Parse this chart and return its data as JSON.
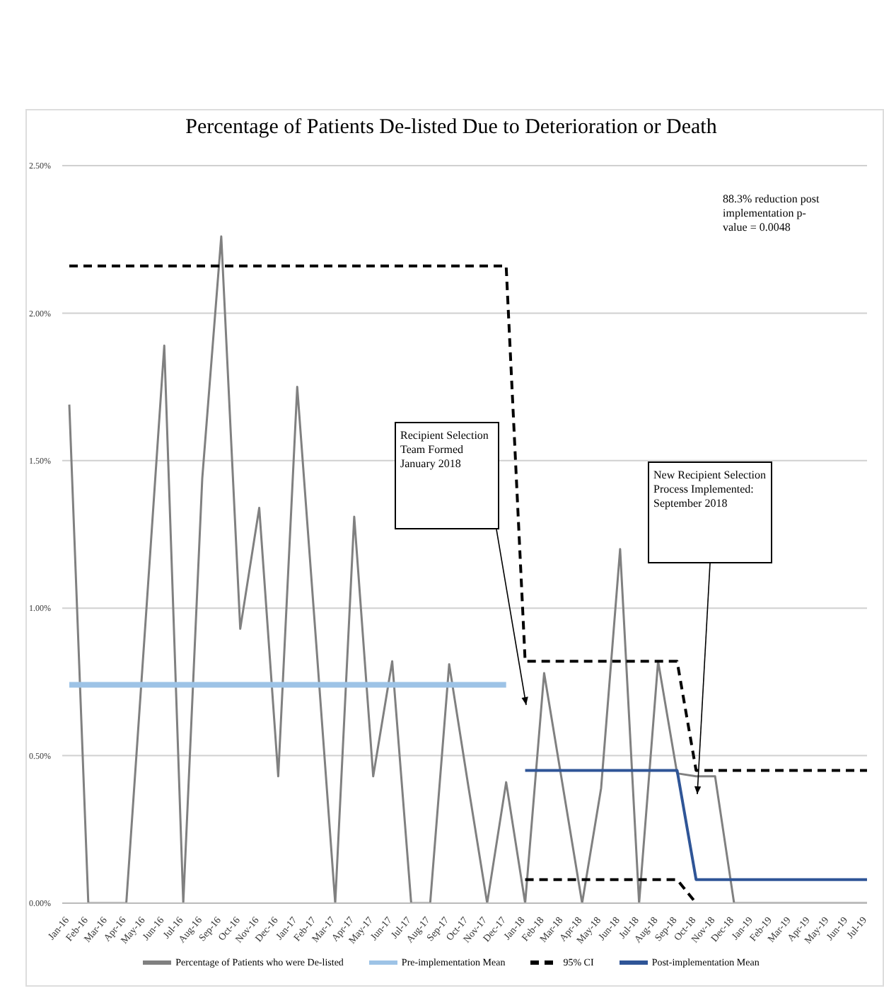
{
  "chart_data": {
    "type": "line",
    "title": "Percentage of Patients De-listed Due to Deterioration or Death",
    "categories": [
      "Jan-16",
      "Feb-16",
      "Mar-16",
      "Apr-16",
      "May-16",
      "Jun-16",
      "Jul-16",
      "Aug-16",
      "Sep-16",
      "Oct-16",
      "Nov-16",
      "Dec-16",
      "Jan-17",
      "Feb-17",
      "Mar-17",
      "Apr-17",
      "May-17",
      "Jun-17",
      "Jul-17",
      "Aug-17",
      "Sep-17",
      "Oct-17",
      "Nov-17",
      "Dec-17",
      "Jan-18",
      "Feb-18",
      "Mar-18",
      "Apr-18",
      "May-18",
      "Jun-18",
      "Jul-18",
      "Aug-18",
      "Sep-18",
      "Oct-18",
      "Nov-18",
      "Dec-18",
      "Jan-19",
      "Feb-19",
      "Mar-19",
      "Apr-19",
      "May-19",
      "Jun-19",
      "Jul-19"
    ],
    "series": [
      {
        "name": "Percentage of Patients who were De-listed",
        "color": "#808080",
        "line_style": "solid",
        "values": [
          1.69,
          0,
          0,
          0,
          0.94,
          1.89,
          0,
          1.44,
          2.26,
          0.93,
          1.34,
          0.43,
          1.75,
          0.88,
          0,
          1.31,
          0.43,
          0.82,
          0,
          0,
          0.81,
          0.4,
          0,
          0.41,
          0,
          0.78,
          0.39,
          0,
          0.39,
          1.2,
          0,
          0.82,
          0.44,
          0.43,
          0.43,
          0,
          0,
          0,
          0,
          0,
          0,
          0,
          0
        ]
      },
      {
        "name": "Pre-implementation Mean",
        "color": "#9dc3e6",
        "line_style": "solid",
        "values": [
          0.74,
          0.74,
          0.74,
          0.74,
          0.74,
          0.74,
          0.74,
          0.74,
          0.74,
          0.74,
          0.74,
          0.74,
          0.74,
          0.74,
          0.74,
          0.74,
          0.74,
          0.74,
          0.74,
          0.74,
          0.74,
          0.74,
          0.74,
          0.74,
          null,
          null,
          null,
          null,
          null,
          null,
          null,
          null,
          null,
          null,
          null,
          null,
          null,
          null,
          null,
          null,
          null,
          null,
          null
        ]
      },
      {
        "name": "95% CI",
        "color": "#000000",
        "line_style": "dashed",
        "values": [
          2.16,
          2.16,
          2.16,
          2.16,
          2.16,
          2.16,
          2.16,
          2.16,
          2.16,
          2.16,
          2.16,
          2.16,
          2.16,
          2.16,
          2.16,
          2.16,
          2.16,
          2.16,
          2.16,
          2.16,
          2.16,
          2.16,
          2.16,
          2.16,
          0.82,
          0.82,
          0.82,
          0.82,
          0.82,
          0.82,
          0.82,
          0.82,
          0.82,
          0.45,
          0.45,
          0.45,
          0.45,
          0.45,
          0.45,
          0.45,
          0.45,
          0.45,
          0.45
        ]
      },
      {
        "color": "#000000",
        "line_style": "dashed",
        "values": [
          null,
          null,
          null,
          null,
          null,
          null,
          null,
          null,
          null,
          null,
          null,
          null,
          null,
          null,
          null,
          null,
          null,
          null,
          null,
          null,
          null,
          null,
          null,
          null,
          0.08,
          0.08,
          0.08,
          0.08,
          0.08,
          0.08,
          0.08,
          0.08,
          0.08,
          0,
          null,
          null,
          null,
          null,
          null,
          null,
          null,
          null,
          null
        ]
      },
      {
        "name": "Post-implementation Mean",
        "color": "#2f5597",
        "line_style": "solid",
        "values": [
          null,
          null,
          null,
          null,
          null,
          null,
          null,
          null,
          null,
          null,
          null,
          null,
          null,
          null,
          null,
          null,
          null,
          null,
          null,
          null,
          null,
          null,
          null,
          null,
          0.45,
          0.45,
          0.45,
          0.45,
          0.45,
          0.45,
          0.45,
          0.45,
          0.45,
          0.08,
          0.08,
          0.08,
          0.08,
          0.08,
          0.08,
          0.08,
          0.08,
          0.08,
          0.08
        ]
      }
    ],
    "ylim": [
      0,
      2.5
    ],
    "yticks": [
      {
        "value": 0,
        "label": "0.00%"
      },
      {
        "value": 0.5,
        "label": "0.50%"
      },
      {
        "value": 1,
        "label": "1.00%"
      },
      {
        "value": 1.5,
        "label": "1.50%"
      },
      {
        "value": 2,
        "label": "2.00%"
      },
      {
        "value": 2.5,
        "label": "2.50%"
      }
    ],
    "grid": "y",
    "legend": "bottom",
    "marker": "none",
    "annotations": [
      "88.3% reduction post implementation p-value = 0.0048",
      "Recipient Selection Team Formed January 2018",
      "New Recipient Selection Process Implemented: September 2018"
    ]
  }
}
